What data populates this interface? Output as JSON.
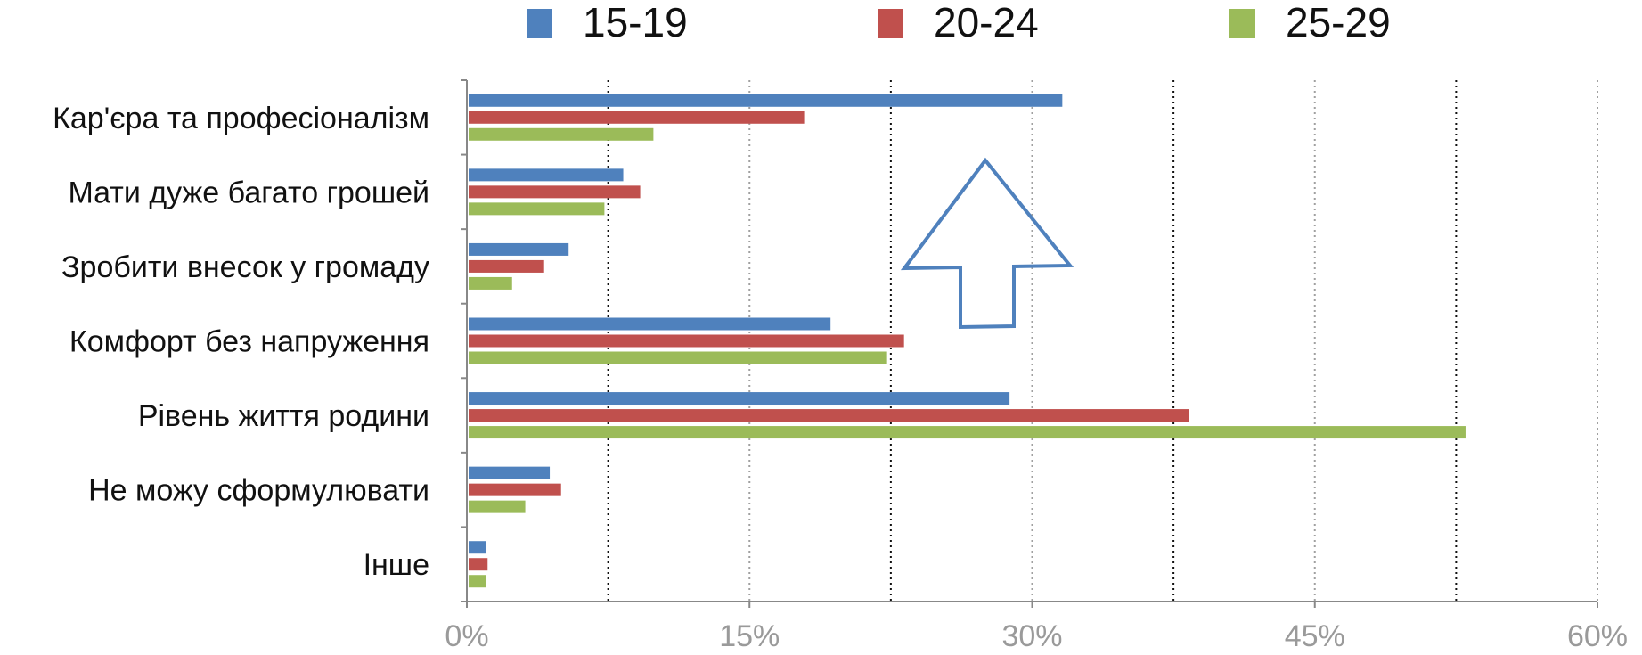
{
  "chart_data": {
    "type": "bar",
    "orientation": "horizontal",
    "categories": [
      "Кар'єра та професіоналізм",
      "Мати дуже багато грошей",
      "Зробити внесок у громаду",
      "Комфорт без напруження",
      "Рівень життя родини",
      "Не можу сформулювати",
      "Інше"
    ],
    "series": [
      {
        "name": "15-19",
        "color": "#4f81bd",
        "values": [
          31.6,
          8.3,
          5.4,
          19.3,
          28.8,
          4.4,
          1.0
        ]
      },
      {
        "name": "20-24",
        "color": "#c0504d",
        "values": [
          17.9,
          9.2,
          4.1,
          23.2,
          38.3,
          5.0,
          1.1
        ]
      },
      {
        "name": "25-29",
        "color": "#9bbb59",
        "values": [
          9.9,
          7.3,
          2.4,
          22.3,
          53.0,
          3.1,
          1.0
        ]
      }
    ],
    "xlim": [
      0,
      60
    ],
    "xticks": [
      "0%",
      "15%",
      "30%",
      "45%",
      "60%"
    ],
    "grid": "vertical dotted",
    "legend_position": "top",
    "annotation": "upward-arrow outline"
  }
}
